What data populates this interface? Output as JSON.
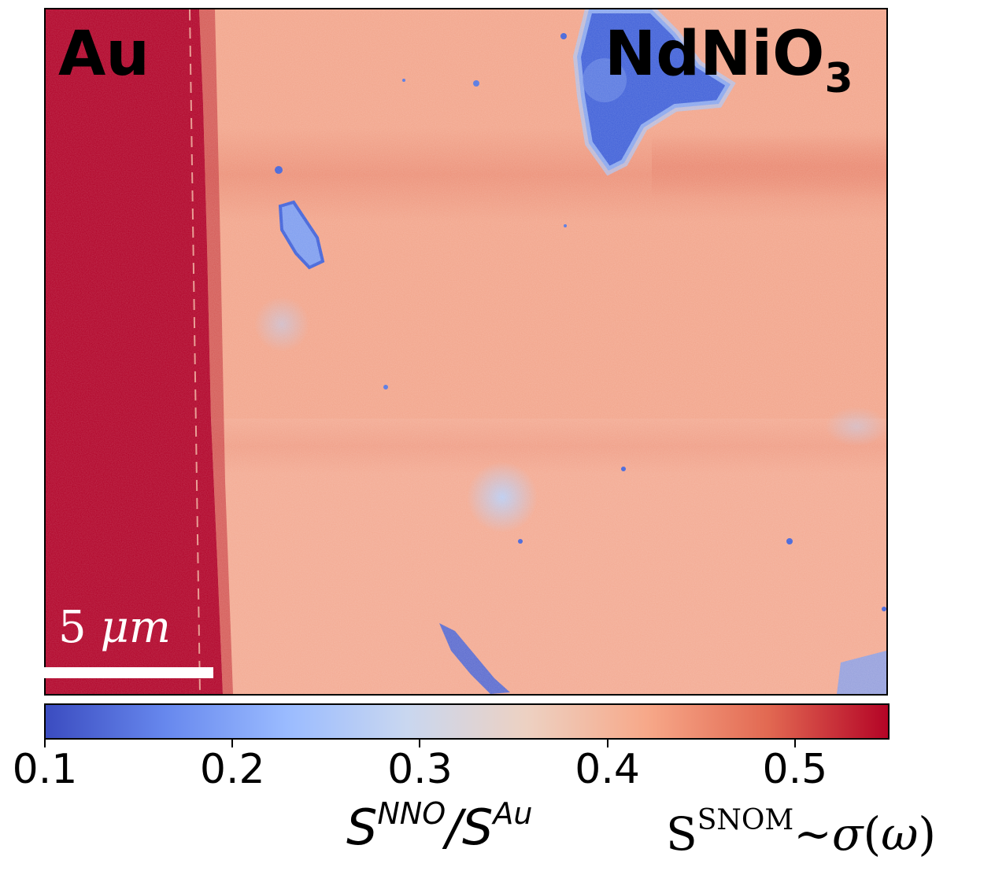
{
  "region_labels": {
    "left": "Au",
    "right_main": "NdNiO",
    "right_sub": "3"
  },
  "scale_bar": {
    "number": "5",
    "unit": "μm"
  },
  "colorbar": {
    "colormap": "coolwarm",
    "min": 0.1,
    "max": 0.55,
    "ticks": [
      "0.1",
      "0.2",
      "0.3",
      "0.4",
      "0.5"
    ],
    "label": {
      "base1": "S",
      "sup1": "NNO",
      "slash": "/",
      "base2": "S",
      "sup2": "Au"
    },
    "stops": [
      "#3b4cc0",
      "#6788ee",
      "#9abbff",
      "#c9d7f0",
      "#edd1c2",
      "#f7a889",
      "#e26952",
      "#b40426"
    ]
  },
  "relation": {
    "base": "S",
    "sup": "SNOM",
    "tilde": "~",
    "sigma": "σ",
    "lparen": "(",
    "omega": "ω",
    "rparen": ")"
  },
  "map_colors": {
    "gold": "#b00026",
    "film": "#f2a48a",
    "film_dark_band": "#e8846c",
    "defect_blue": "#3e5fd8",
    "defect_light": "#a9c4f7"
  }
}
